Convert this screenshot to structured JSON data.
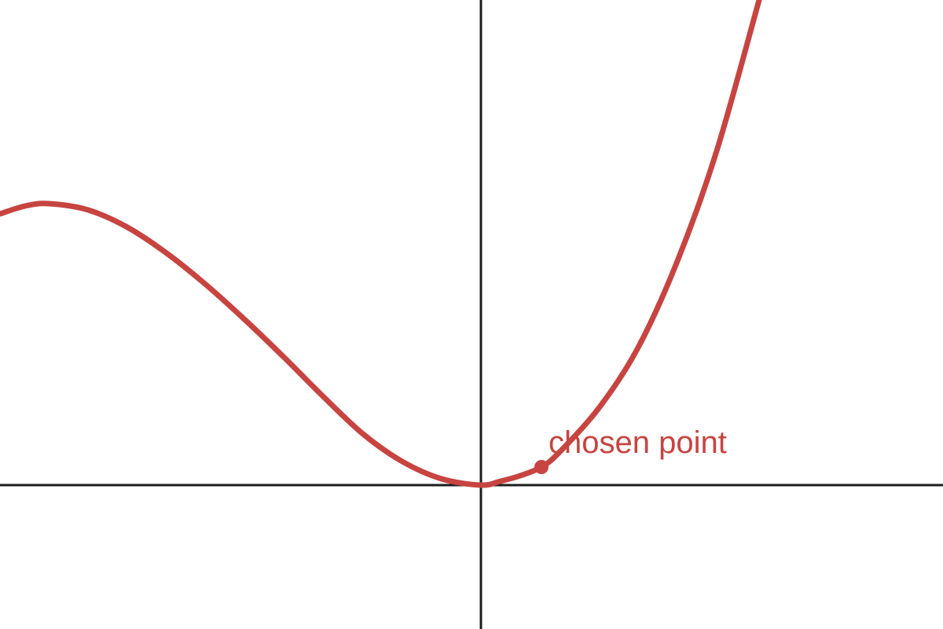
{
  "chart_data": {
    "type": "line",
    "title": "",
    "xlabel": "",
    "ylabel": "",
    "grid": false,
    "legend": "none",
    "xlim": [
      -6.12,
      5.88
    ],
    "ylim": [
      -1.83,
      6.17
    ],
    "series": [
      {
        "color": "#c74440",
        "x": [
          -6.12,
          -5.8,
          -5.5,
          -5.0,
          -4.5,
          -4.0,
          -3.5,
          -3.0,
          -2.5,
          -2.0,
          -1.5,
          -1.0,
          -0.5,
          0.0,
          0.25,
          0.5,
          0.77,
          1.0,
          1.5,
          2.0,
          2.5,
          3.0,
          3.54
        ],
        "y": [
          3.45,
          3.55,
          3.58,
          3.5,
          3.28,
          2.95,
          2.55,
          2.1,
          1.62,
          1.12,
          0.65,
          0.3,
          0.08,
          0.0,
          0.05,
          0.12,
          0.23,
          0.42,
          0.98,
          1.75,
          2.85,
          4.25,
          6.17
        ]
      }
    ],
    "annotations": [
      {
        "text": "chosen point",
        "x": 0.77,
        "y": 0.23,
        "color": "#c74440"
      }
    ]
  }
}
